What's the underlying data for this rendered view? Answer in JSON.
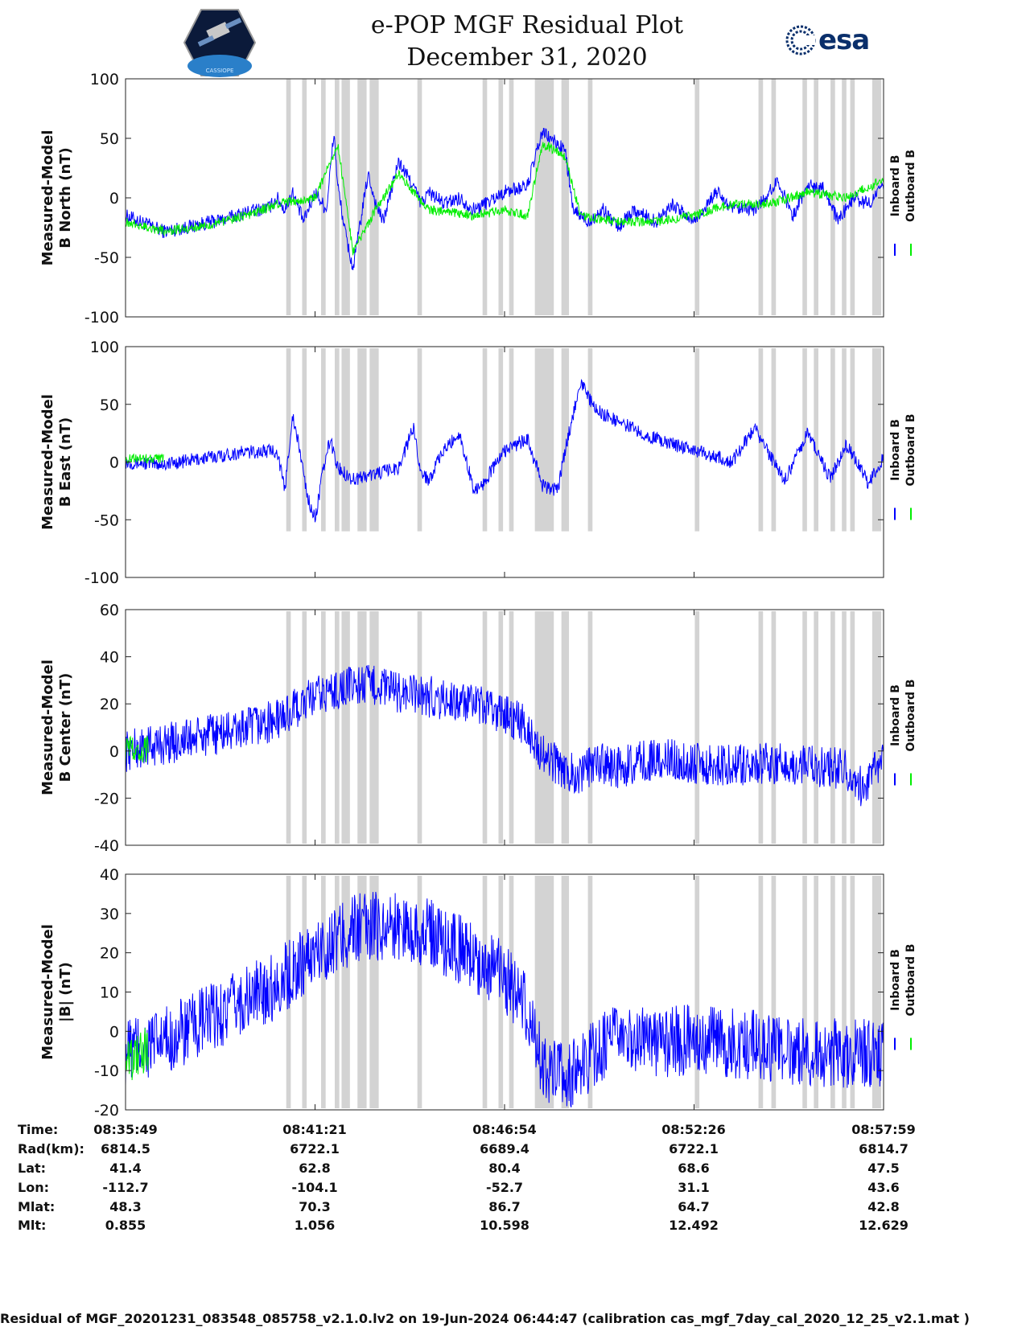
{
  "header": {
    "title_line1": "e-POP MGF Residual Plot",
    "title_line2": "December 31, 2020",
    "left_logo_text": "CASSIOPE",
    "right_logo_text": "esa"
  },
  "colors": {
    "inboard": "#0000ff",
    "outboard": "#00ee00",
    "shade": "#d3d3d3"
  },
  "chart_data": [
    {
      "type": "line",
      "ylabel_line1": "Measured-Model",
      "ylabel_line2": "B North (nT)",
      "ylim": [
        -100,
        100
      ],
      "yticks": [
        -100,
        -50,
        0,
        50,
        100
      ],
      "series": [
        {
          "name": "Inboard B",
          "color": "#0000ff",
          "x": [
            0,
            0.02,
            0.05,
            0.08,
            0.1,
            0.13,
            0.16,
            0.19,
            0.2,
            0.21,
            0.22,
            0.235,
            0.25,
            0.265,
            0.275,
            0.28,
            0.29,
            0.3,
            0.31,
            0.32,
            0.33,
            0.34,
            0.36,
            0.38,
            0.39,
            0.4,
            0.42,
            0.44,
            0.46,
            0.5,
            0.53,
            0.55,
            0.57,
            0.58,
            0.59,
            0.6,
            0.61,
            0.63,
            0.65,
            0.67,
            0.7,
            0.72,
            0.75,
            0.78,
            0.8,
            0.83,
            0.85,
            0.86,
            0.88,
            0.9,
            0.92,
            0.94,
            0.96,
            0.98,
            1.0
          ],
          "y": [
            -15,
            -20,
            -28,
            -25,
            -22,
            -18,
            -12,
            -8,
            0,
            -10,
            5,
            -20,
            5,
            -10,
            55,
            10,
            -30,
            -60,
            -20,
            20,
            -5,
            -20,
            30,
            10,
            -5,
            5,
            -5,
            0,
            -10,
            5,
            10,
            55,
            45,
            40,
            -10,
            -15,
            -20,
            -10,
            -25,
            -10,
            -20,
            -5,
            -20,
            5,
            -10,
            -10,
            5,
            15,
            -15,
            10,
            10,
            -20,
            0,
            -5,
            10
          ]
        },
        {
          "name": "Outboard B",
          "color": "#00ee00",
          "x": [
            0,
            0.05,
            0.1,
            0.16,
            0.2,
            0.25,
            0.28,
            0.3,
            0.33,
            0.36,
            0.4,
            0.46,
            0.5,
            0.53,
            0.55,
            0.58,
            0.6,
            0.65,
            0.7,
            0.75,
            0.8,
            0.85,
            0.9,
            0.95,
            1.0
          ],
          "y": [
            -20,
            -28,
            -24,
            -15,
            -5,
            0,
            45,
            -45,
            -10,
            20,
            -10,
            -15,
            -10,
            -15,
            45,
            35,
            -15,
            -20,
            -20,
            -15,
            -5,
            -5,
            5,
            0,
            15
          ]
        }
      ],
      "shade_intervals": [
        [
          0.212,
          0.218
        ],
        [
          0.233,
          0.239
        ],
        [
          0.258,
          0.264
        ],
        [
          0.276,
          0.282
        ],
        [
          0.285,
          0.296
        ],
        [
          0.306,
          0.318
        ],
        [
          0.322,
          0.334
        ],
        [
          0.385,
          0.391
        ],
        [
          0.471,
          0.477
        ],
        [
          0.492,
          0.498
        ],
        [
          0.506,
          0.512
        ],
        [
          0.54,
          0.565
        ],
        [
          0.575,
          0.585
        ],
        [
          0.61,
          0.616
        ],
        [
          0.751,
          0.757
        ],
        [
          0.835,
          0.841
        ],
        [
          0.852,
          0.858
        ],
        [
          0.893,
          0.899
        ],
        [
          0.908,
          0.914
        ],
        [
          0.93,
          0.936
        ],
        [
          0.945,
          0.951
        ],
        [
          0.956,
          0.962
        ],
        [
          0.985,
          0.997
        ]
      ]
    },
    {
      "type": "line",
      "ylabel_line1": "Measured-Model",
      "ylabel_line2": "B East (nT)",
      "ylim": [
        -100,
        100
      ],
      "yticks": [
        -100,
        -50,
        0,
        50,
        100
      ],
      "series": [
        {
          "name": "Inboard B",
          "color": "#0000ff",
          "x": [
            0,
            0.05,
            0.1,
            0.15,
            0.2,
            0.21,
            0.22,
            0.23,
            0.24,
            0.25,
            0.26,
            0.27,
            0.28,
            0.3,
            0.33,
            0.36,
            0.38,
            0.39,
            0.4,
            0.42,
            0.44,
            0.46,
            0.47,
            0.5,
            0.53,
            0.55,
            0.57,
            0.58,
            0.6,
            0.62,
            0.65,
            0.7,
            0.75,
            0.8,
            0.83,
            0.85,
            0.87,
            0.9,
            0.93,
            0.95,
            0.97,
            0.98,
            1.0
          ],
          "y": [
            0,
            -2,
            3,
            8,
            10,
            -25,
            40,
            10,
            -30,
            -50,
            -10,
            20,
            -5,
            -15,
            -10,
            -5,
            30,
            -10,
            -15,
            10,
            25,
            -25,
            -20,
            10,
            20,
            -20,
            -25,
            10,
            70,
            45,
            35,
            20,
            10,
            0,
            30,
            5,
            -15,
            25,
            -15,
            15,
            -5,
            -20,
            5
          ]
        },
        {
          "name": "Outboard B",
          "color": "#00ee00",
          "x": [
            0,
            0.015,
            0.03,
            0.05
          ],
          "y": [
            2,
            4,
            3,
            3
          ]
        }
      ],
      "shade_intervals": [
        [
          0.212,
          0.218
        ],
        [
          0.233,
          0.239
        ],
        [
          0.258,
          0.264
        ],
        [
          0.276,
          0.282
        ],
        [
          0.285,
          0.296
        ],
        [
          0.306,
          0.318
        ],
        [
          0.322,
          0.334
        ],
        [
          0.385,
          0.391
        ],
        [
          0.471,
          0.477
        ],
        [
          0.492,
          0.498
        ],
        [
          0.506,
          0.512
        ],
        [
          0.54,
          0.565
        ],
        [
          0.575,
          0.585
        ],
        [
          0.61,
          0.616
        ],
        [
          0.751,
          0.757
        ],
        [
          0.835,
          0.841
        ],
        [
          0.852,
          0.858
        ],
        [
          0.893,
          0.899
        ],
        [
          0.908,
          0.914
        ],
        [
          0.93,
          0.936
        ],
        [
          0.945,
          0.951
        ],
        [
          0.956,
          0.962
        ],
        [
          0.985,
          0.997
        ]
      ]
    },
    {
      "type": "line",
      "ylabel_line1": "Measured-Model",
      "ylabel_line2": "B Center (nT)",
      "ylim": [
        -40,
        60
      ],
      "yticks": [
        -40,
        -20,
        0,
        20,
        40,
        60
      ],
      "series": [
        {
          "name": "Inboard B",
          "color": "#0000ff",
          "x": [
            0,
            0.05,
            0.1,
            0.15,
            0.2,
            0.25,
            0.28,
            0.3,
            0.33,
            0.36,
            0.4,
            0.45,
            0.5,
            0.53,
            0.55,
            0.58,
            0.6,
            0.62,
            0.65,
            0.7,
            0.75,
            0.8,
            0.85,
            0.9,
            0.95,
            0.97,
            1.0
          ],
          "y": [
            0,
            3,
            6,
            9,
            13,
            23,
            26,
            28,
            28,
            25,
            23,
            20,
            16,
            10,
            -2,
            -8,
            -10,
            -5,
            -7,
            -3,
            -5,
            -6,
            -5,
            -6,
            -8,
            -15,
            -5
          ]
        },
        {
          "name": "Outboard B",
          "color": "#00ee00",
          "x": [
            0,
            0.01,
            0.02,
            0.03
          ],
          "y": [
            0,
            2,
            -2,
            1
          ]
        }
      ],
      "shade_intervals": [
        [
          0.212,
          0.218
        ],
        [
          0.233,
          0.239
        ],
        [
          0.258,
          0.264
        ],
        [
          0.276,
          0.282
        ],
        [
          0.285,
          0.296
        ],
        [
          0.306,
          0.318
        ],
        [
          0.322,
          0.334
        ],
        [
          0.385,
          0.391
        ],
        [
          0.471,
          0.477
        ],
        [
          0.492,
          0.498
        ],
        [
          0.506,
          0.512
        ],
        [
          0.54,
          0.565
        ],
        [
          0.575,
          0.585
        ],
        [
          0.61,
          0.616
        ],
        [
          0.751,
          0.757
        ],
        [
          0.835,
          0.841
        ],
        [
          0.852,
          0.858
        ],
        [
          0.893,
          0.899
        ],
        [
          0.908,
          0.914
        ],
        [
          0.93,
          0.936
        ],
        [
          0.945,
          0.951
        ],
        [
          0.956,
          0.962
        ],
        [
          0.985,
          0.997
        ]
      ]
    },
    {
      "type": "line",
      "ylabel_line1": "Measured-Model",
      "ylabel_line2": "|B| (nT)",
      "ylim": [
        -20,
        40
      ],
      "yticks": [
        -20,
        -10,
        0,
        10,
        20,
        30,
        40
      ],
      "series": [
        {
          "name": "Inboard B",
          "color": "#0000ff",
          "x": [
            0,
            0.05,
            0.1,
            0.15,
            0.2,
            0.25,
            0.3,
            0.35,
            0.4,
            0.45,
            0.5,
            0.53,
            0.55,
            0.57,
            0.6,
            0.62,
            0.65,
            0.7,
            0.75,
            0.8,
            0.85,
            0.9,
            0.95,
            1.0
          ],
          "y": [
            -5,
            -3,
            2,
            7,
            12,
            20,
            26,
            27,
            25,
            20,
            14,
            5,
            -8,
            -12,
            -10,
            -5,
            -2,
            -3,
            -2,
            -3,
            -4,
            -5,
            -6,
            -5
          ]
        },
        {
          "name": "Outboard B",
          "color": "#00ee00",
          "x": [
            0,
            0.01,
            0.02,
            0.03
          ],
          "y": [
            -5,
            -7,
            -4,
            -6
          ]
        }
      ],
      "shade_intervals": [
        [
          0.212,
          0.218
        ],
        [
          0.233,
          0.239
        ],
        [
          0.258,
          0.264
        ],
        [
          0.276,
          0.282
        ],
        [
          0.285,
          0.296
        ],
        [
          0.306,
          0.318
        ],
        [
          0.322,
          0.334
        ],
        [
          0.385,
          0.391
        ],
        [
          0.471,
          0.477
        ],
        [
          0.492,
          0.498
        ],
        [
          0.506,
          0.512
        ],
        [
          0.54,
          0.565
        ],
        [
          0.575,
          0.585
        ],
        [
          0.61,
          0.616
        ],
        [
          0.751,
          0.757
        ],
        [
          0.835,
          0.841
        ],
        [
          0.852,
          0.858
        ],
        [
          0.893,
          0.899
        ],
        [
          0.908,
          0.914
        ],
        [
          0.93,
          0.936
        ],
        [
          0.945,
          0.951
        ],
        [
          0.956,
          0.962
        ],
        [
          0.985,
          0.997
        ]
      ]
    }
  ],
  "legend": {
    "inboard_label": "Inboard B",
    "outboard_label": "Outboard B"
  },
  "info_table": {
    "labels": [
      "Time:",
      "Rad(km):",
      "Lat:",
      "Lon:",
      "Mlat:",
      "Mlt:"
    ],
    "columns": [
      [
        "08:35:49",
        "6814.5",
        "41.4",
        "-112.7",
        "48.3",
        "0.855"
      ],
      [
        "08:41:21",
        "6722.1",
        "62.8",
        "-104.1",
        "70.3",
        "1.056"
      ],
      [
        "08:46:54",
        "6689.4",
        "80.4",
        "-52.7",
        "86.7",
        "10.598"
      ],
      [
        "08:52:26",
        "6722.1",
        "68.6",
        "31.1",
        "64.7",
        "12.492"
      ],
      [
        "08:57:59",
        "6814.7",
        "47.5",
        "43.6",
        "42.8",
        "12.629"
      ]
    ]
  },
  "footer": "Residual of MGF_20201231_083548_085758_v2.1.0.lv2 on 19-Jun-2024 06:44:47 (calibration cas_mgf_7day_cal_2020_12_25_v2.1.mat )"
}
